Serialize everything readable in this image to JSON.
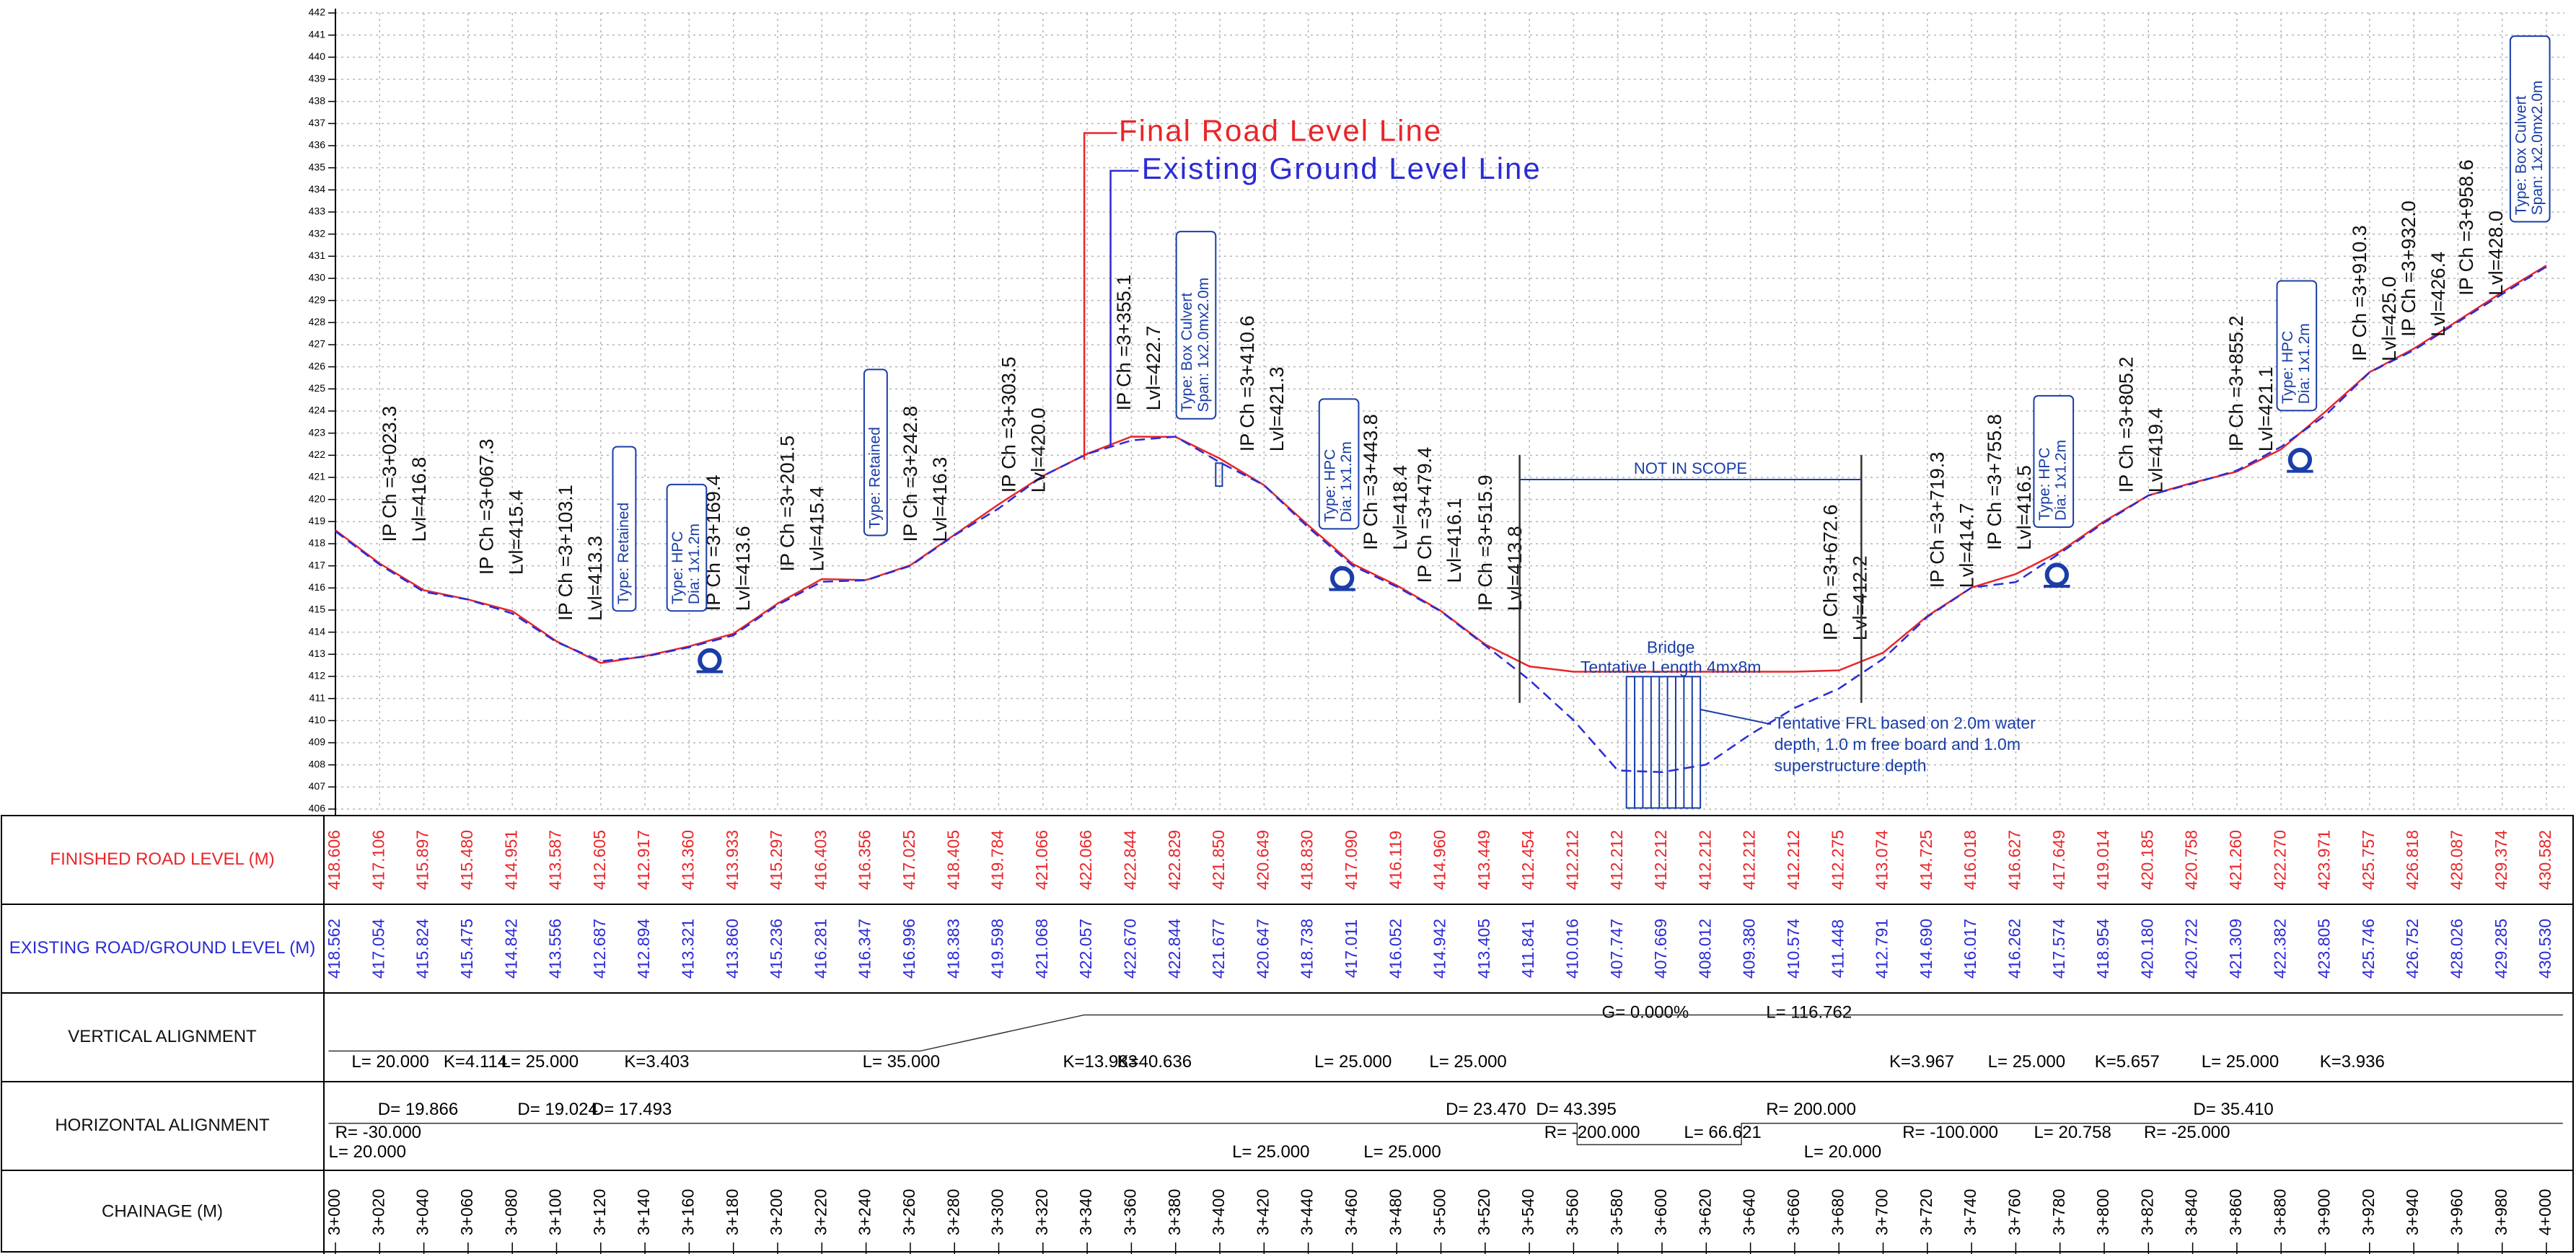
{
  "chart_data": {
    "type": "line",
    "x": [
      3000,
      3020,
      3040,
      3060,
      3080,
      3100,
      3120,
      3140,
      3160,
      3180,
      3200,
      3220,
      3240,
      3260,
      3280,
      3300,
      3320,
      3340,
      3360,
      3380,
      3400,
      3420,
      3440,
      3460,
      3480,
      3500,
      3520,
      3540,
      3560,
      3580,
      3600,
      3620,
      3640,
      3660,
      3680,
      3700,
      3720,
      3740,
      3760,
      3780,
      3800,
      3820,
      3840,
      3860,
      3880,
      3900,
      3920,
      3940,
      3960,
      3980,
      4000
    ],
    "xlim": [
      3000,
      4000
    ],
    "xticks": [
      {
        "value": 3000,
        "label": "3+000"
      },
      {
        "value": 3020,
        "label": "3+020"
      },
      {
        "value": 3040,
        "label": "3+040"
      },
      {
        "value": 3060,
        "label": "3+060"
      },
      {
        "value": 3080,
        "label": "3+080"
      },
      {
        "value": 3100,
        "label": "3+100"
      },
      {
        "value": 3120,
        "label": "3+120"
      },
      {
        "value": 3140,
        "label": "3+140"
      },
      {
        "value": 3160,
        "label": "3+160"
      },
      {
        "value": 3180,
        "label": "3+180"
      },
      {
        "value": 3200,
        "label": "3+200"
      },
      {
        "value": 3220,
        "label": "3+220"
      },
      {
        "value": 3240,
        "label": "3+240"
      },
      {
        "value": 3260,
        "label": "3+260"
      },
      {
        "value": 3280,
        "label": "3+280"
      },
      {
        "value": 3300,
        "label": "3+300"
      },
      {
        "value": 3320,
        "label": "3+320"
      },
      {
        "value": 3340,
        "label": "3+340"
      },
      {
        "value": 3360,
        "label": "3+360"
      },
      {
        "value": 3380,
        "label": "3+380"
      },
      {
        "value": 3400,
        "label": "3+400"
      },
      {
        "value": 3420,
        "label": "3+420"
      },
      {
        "value": 3440,
        "label": "3+440"
      },
      {
        "value": 3460,
        "label": "3+460"
      },
      {
        "value": 3480,
        "label": "3+480"
      },
      {
        "value": 3500,
        "label": "3+500"
      },
      {
        "value": 3520,
        "label": "3+520"
      },
      {
        "value": 3540,
        "label": "3+540"
      },
      {
        "value": 3560,
        "label": "3+560"
      },
      {
        "value": 3580,
        "label": "3+580"
      },
      {
        "value": 3600,
        "label": "3+600"
      },
      {
        "value": 3620,
        "label": "3+620"
      },
      {
        "value": 3640,
        "label": "3+640"
      },
      {
        "value": 3660,
        "label": "3+660"
      },
      {
        "value": 3680,
        "label": "3+680"
      },
      {
        "value": 3700,
        "label": "3+700"
      },
      {
        "value": 3720,
        "label": "3+720"
      },
      {
        "value": 3740,
        "label": "3+740"
      },
      {
        "value": 3760,
        "label": "3+760"
      },
      {
        "value": 3780,
        "label": "3+780"
      },
      {
        "value": 3800,
        "label": "3+800"
      },
      {
        "value": 3820,
        "label": "3+820"
      },
      {
        "value": 3840,
        "label": "3+840"
      },
      {
        "value": 3860,
        "label": "3+860"
      },
      {
        "value": 3880,
        "label": "3+880"
      },
      {
        "value": 3900,
        "label": "3+900"
      },
      {
        "value": 3920,
        "label": "3+920"
      },
      {
        "value": 3940,
        "label": "3+940"
      },
      {
        "value": 3960,
        "label": "3+960"
      },
      {
        "value": 3980,
        "label": "3+980"
      },
      {
        "value": 4000,
        "label": "4+000"
      }
    ],
    "ylim": [
      406,
      442
    ],
    "yticks": [
      406,
      407,
      408,
      409,
      410,
      411,
      412,
      413,
      414,
      415,
      416,
      417,
      418,
      419,
      420,
      421,
      422,
      423,
      424,
      425,
      426,
      427,
      428,
      429,
      430,
      431,
      432,
      433,
      434,
      435,
      436,
      437,
      438,
      439,
      440,
      441,
      442
    ],
    "grid": true,
    "series": [
      {
        "name": "FINISHED ROAD LEVEL (M)",
        "color": "#e8262a",
        "dashed": false,
        "values": [
          418.606,
          417.106,
          415.897,
          415.48,
          414.951,
          413.587,
          412.605,
          412.917,
          413.36,
          413.933,
          415.297,
          416.403,
          416.356,
          417.025,
          418.405,
          419.784,
          421.066,
          422.066,
          422.844,
          422.829,
          421.85,
          420.649,
          418.83,
          417.09,
          416.119,
          414.96,
          413.449,
          412.454,
          412.212,
          412.212,
          412.212,
          412.212,
          412.212,
          412.212,
          412.275,
          413.074,
          414.725,
          416.018,
          416.627,
          417.649,
          419.014,
          420.185,
          420.758,
          421.26,
          422.27,
          423.971,
          425.757,
          426.818,
          428.087,
          429.374,
          430.582
        ],
        "value_labels": [
          "418.606",
          "417.106",
          "415.897",
          "415.480",
          "414.951",
          "413.587",
          "412.605",
          "412.917",
          "413.360",
          "413.933",
          "415.297",
          "416.403",
          "416.356",
          "417.025",
          "418.405",
          "419.784",
          "421.066",
          "422.066",
          "422.844",
          "422.829",
          "421.850",
          "420.649",
          "418.830",
          "417.090",
          "416.119",
          "414.960",
          "413.449",
          "412.454",
          "412.212",
          "412.212",
          "412.212",
          "412.212",
          "412.212",
          "412.212",
          "412.275",
          "413.074",
          "414.725",
          "416.018",
          "416.627",
          "417.649",
          "419.014",
          "420.185",
          "420.758",
          "421.260",
          "422.270",
          "423.971",
          "425.757",
          "426.818",
          "428.087",
          "429.374",
          "430.582"
        ]
      },
      {
        "name": "EXISTING ROAD/GROUND LEVEL (M)",
        "color": "#2b2bd6",
        "dashed": true,
        "values": [
          418.562,
          417.054,
          415.824,
          415.475,
          414.842,
          413.556,
          412.687,
          412.894,
          413.321,
          413.86,
          415.236,
          416.281,
          416.347,
          416.996,
          418.383,
          419.598,
          421.068,
          422.057,
          422.67,
          422.844,
          421.677,
          420.647,
          418.738,
          417.011,
          416.052,
          414.942,
          413.405,
          411.841,
          410.016,
          407.747,
          407.669,
          408.012,
          409.38,
          410.574,
          411.448,
          412.791,
          414.69,
          416.017,
          416.262,
          417.574,
          418.954,
          420.18,
          420.722,
          421.309,
          422.382,
          423.805,
          425.746,
          426.752,
          428.026,
          429.285,
          430.53
        ],
        "value_labels": [
          "418.562",
          "417.054",
          "415.824",
          "415.475",
          "414.842",
          "413.556",
          "412.687",
          "412.894",
          "413.321",
          "413.860",
          "415.236",
          "416.281",
          "416.347",
          "416.996",
          "418.383",
          "419.598",
          "421.068",
          "422.057",
          "422.670",
          "422.844",
          "421.677",
          "420.647",
          "418.738",
          "417.011",
          "416.052",
          "414.942",
          "413.405",
          "411.841",
          "410.016",
          "407.747",
          "407.669",
          "408.012",
          "409.380",
          "410.574",
          "411.448",
          "412.791",
          "414.690",
          "416.017",
          "416.262",
          "417.574",
          "418.954",
          "420.180",
          "420.722",
          "421.309",
          "422.382",
          "423.805",
          "425.746",
          "426.752",
          "428.026",
          "429.285",
          "430.530"
        ]
      }
    ],
    "row_headers": [
      "FINISHED ROAD LEVEL (M)",
      "EXISTING ROAD/GROUND LEVEL (M)",
      "VERTICAL ALIGNMENT",
      "HORIZONTAL ALIGNMENT",
      "CHAINAGE (M)"
    ],
    "line_labels": [
      "Final Road Level Line",
      "Existing Ground Level Line"
    ],
    "ip_points": [
      [
        "IP Ch =3+023.3",
        "Lvl=416.8"
      ],
      [
        "IP Ch =3+067.3",
        "Lvl=415.4"
      ],
      [
        "IP Ch =3+103.1",
        "Lvl=413.3"
      ],
      [
        "IP Ch =3+169.4",
        "Lvl=413.6"
      ],
      [
        "IP Ch =3+201.5",
        "Lvl=415.4"
      ],
      [
        "IP Ch =3+242.8",
        "Lvl=416.3"
      ],
      [
        "IP Ch =3+303.5",
        "Lvl=420.0"
      ],
      [
        "IP Ch =3+355.1",
        "Lvl=422.7"
      ],
      [
        "IP Ch =3+410.6",
        "Lvl=421.3"
      ],
      [
        "IP Ch =3+443.8",
        "Lvl=418.4"
      ],
      [
        "IP Ch =3+479.4",
        "Lvl=416.1"
      ],
      [
        "IP Ch =3+515.9",
        "Lvl=413.8"
      ],
      [
        "IP Ch =3+672.6",
        "Lvl=412.2"
      ],
      [
        "IP Ch =3+719.3",
        "Lvl=414.7"
      ],
      [
        "IP Ch =3+755.8",
        "Lvl=416.5"
      ],
      [
        "IP Ch =3+805.2",
        "Lvl=419.4"
      ],
      [
        "IP Ch =3+855.2",
        "Lvl=421.1"
      ],
      [
        "IP Ch =3+910.3",
        "Lvl=425.0"
      ],
      [
        "IP Ch =3+932.0",
        "Lvl=426.4"
      ],
      [
        "IP Ch =3+958.6",
        "Lvl=428.0"
      ]
    ],
    "structures": [
      [
        "Type: Retained"
      ],
      [
        "Type: HPC",
        "Dia: 1x1.2m"
      ],
      [
        "Type: Retained"
      ],
      [
        "Type: Box Culvert",
        "Span: 1x2.0mx2.0m"
      ],
      [
        "Type: HPC",
        "Dia: 1x1.2m"
      ],
      [
        "Type: HPC",
        "Dia: 1x1.2m"
      ],
      [
        "Type: HPC",
        "Dia: 1x1.2m"
      ],
      [
        "Type: Box Culvert",
        "Span: 1x2.0mx2.0m"
      ]
    ],
    "scope_label": "NOT IN SCOPE",
    "bridge_labels": [
      "Bridge",
      "Tentative Length 4mx8m"
    ],
    "note_lines": [
      "Tentative FRL based on 2.0m water",
      "depth, 1.0 m free board and 1.0m",
      "superstructure depth"
    ],
    "vertical_alignment_labels": [
      "L= 20.000",
      "K=4.114",
      "L= 25.000",
      "K=3.403",
      "L= 35.000",
      "K=13.983",
      "K=40.636",
      "L= 25.000",
      "L= 25.000",
      "G= 0.000%",
      "L= 116.762",
      "K=3.967",
      "L= 25.000",
      "K=5.657",
      "L= 25.000",
      "K=3.936"
    ],
    "horizontal_alignment_labels": [
      "D= 19.866",
      "R= -30.000",
      "L= 20.000",
      "D= 19.024",
      "D= 17.493",
      "L= 25.000",
      "D= 23.470",
      "L= 25.000",
      "D= 43.395",
      "R= -200.000",
      "L= 66.621",
      "R= 200.000",
      "L= 20.000",
      "R= -100.000",
      "L= 20.758",
      "D= 35.410",
      "R= -25.000"
    ]
  }
}
